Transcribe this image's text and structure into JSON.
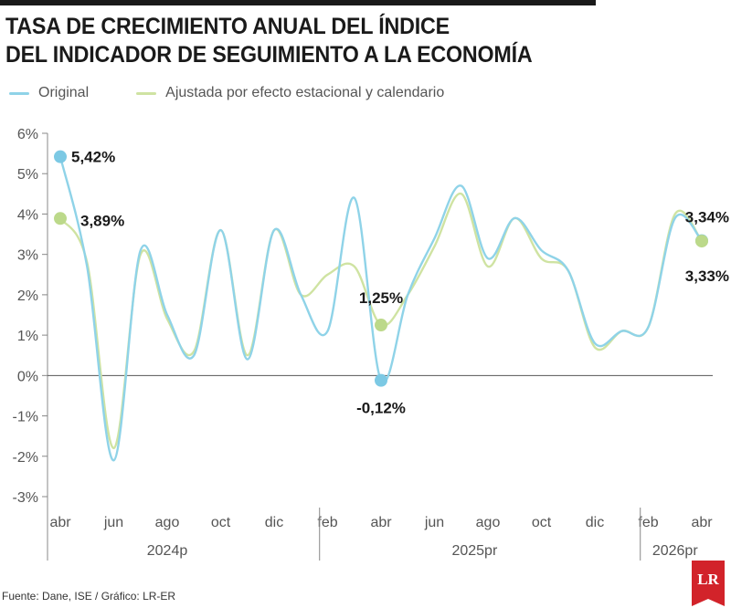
{
  "title_lines": [
    "TASA DE CRECIMIENTO ANUAL DEL ÍNDICE",
    "DEL INDICADOR DE SEGUIMIENTO A LA ECONOMÍA"
  ],
  "source": "Fuente: Dane, ISE / Gráfico: LR-ER",
  "logo_text": "LR",
  "colors": {
    "original": "#8fd3e8",
    "ajustada": "#cfe3a2",
    "axis": "#888888",
    "text": "#1a1a1a"
  },
  "chart_data": {
    "type": "line",
    "title": "TASA DE CRECIMIENTO ANUAL DEL ÍNDICE DEL INDICADOR DE SEGUIMIENTO A LA ECONOMÍA",
    "xlabel": "",
    "ylabel": "",
    "ylim": [
      -3,
      6
    ],
    "y_ticks": [
      6,
      5,
      4,
      3,
      2,
      1,
      0,
      -1,
      -2,
      -3
    ],
    "y_tick_labels": [
      "6%",
      "5%",
      "4%",
      "3%",
      "2%",
      "1%",
      "0%",
      "-1%",
      "-2%",
      "-3%"
    ],
    "x_tick_labels": [
      "abr",
      "jun",
      "ago",
      "oct",
      "dic",
      "feb",
      "abr",
      "jun",
      "ago",
      "oct",
      "dic",
      "feb",
      "abr"
    ],
    "periods": [
      "2024p",
      "2025pr",
      "2026pr"
    ],
    "x": [
      "2024-04",
      "2024-05",
      "2024-06",
      "2024-07",
      "2024-08",
      "2024-09",
      "2024-10",
      "2024-11",
      "2024-12",
      "2025-01",
      "2025-02",
      "2025-03",
      "2025-04",
      "2025-05",
      "2025-06",
      "2025-07",
      "2025-08",
      "2025-09",
      "2025-10",
      "2025-11",
      "2025-12",
      "2026-01",
      "2026-02",
      "2026-03",
      "2026-04"
    ],
    "grid": false,
    "legend_position": "top-left",
    "series": [
      {
        "name": "Original",
        "values": [
          5.42,
          2.7,
          -2.1,
          3.1,
          1.5,
          0.5,
          3.6,
          0.4,
          3.6,
          2.0,
          1.1,
          4.4,
          -0.12,
          2.0,
          3.4,
          4.7,
          2.9,
          3.9,
          3.1,
          2.6,
          0.8,
          1.1,
          1.2,
          3.9,
          3.34
        ]
      },
      {
        "name": "Ajustada por efecto estacional y calendario",
        "values": [
          3.89,
          2.8,
          -1.8,
          3.0,
          1.4,
          0.6,
          3.6,
          0.5,
          3.6,
          2.0,
          2.5,
          2.7,
          1.25,
          2.0,
          3.2,
          4.5,
          2.7,
          3.9,
          2.9,
          2.6,
          0.7,
          1.1,
          1.2,
          4.0,
          3.33
        ]
      }
    ],
    "annotations": [
      {
        "series": 0,
        "index": 0,
        "text": "5,42%"
      },
      {
        "series": 1,
        "index": 0,
        "text": "3,89%"
      },
      {
        "series": 1,
        "index": 12,
        "text": "1,25%"
      },
      {
        "series": 0,
        "index": 12,
        "text": "-0,12%"
      },
      {
        "series": 0,
        "index": 24,
        "text": "3,34%"
      },
      {
        "series": 1,
        "index": 24,
        "text": "3,33%"
      }
    ]
  }
}
